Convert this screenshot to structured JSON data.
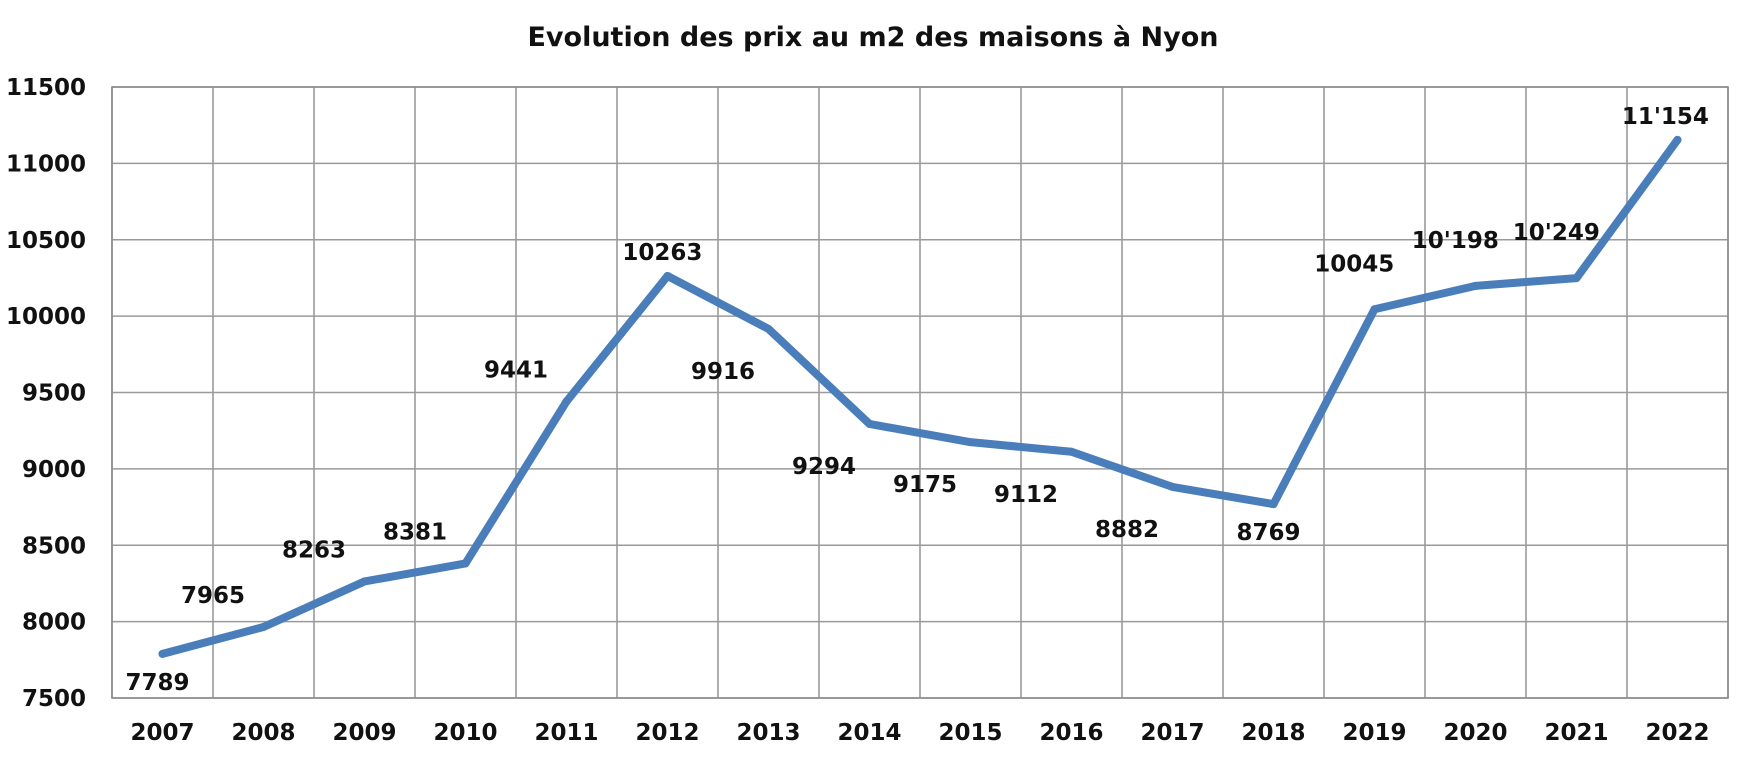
{
  "chart_data": {
    "type": "line",
    "title": "Evolution des prix au m2 des maisons à Nyon",
    "xlabel": "",
    "ylabel": "",
    "categories": [
      "2007",
      "2008",
      "2009",
      "2010",
      "2011",
      "2012",
      "2013",
      "2014",
      "2015",
      "2016",
      "2017",
      "2018",
      "2019",
      "2020",
      "2021",
      "2022"
    ],
    "series": [
      {
        "values": [
          7789,
          7965,
          8263,
          8381,
          9441,
          10263,
          9916,
          9294,
          9175,
          9112,
          8882,
          8769,
          10045,
          10198,
          10249,
          11154
        ],
        "data_labels": [
          "7789",
          "7965",
          "8263",
          "8381",
          "9441",
          "10263",
          "9916",
          "9294",
          "9175",
          "9112",
          "8882",
          "8769",
          "10045",
          "10'198",
          "10'249",
          "11'154"
        ],
        "color": "#4a7ebb"
      }
    ],
    "ylim": [
      7500,
      11500
    ],
    "y_ticks": [
      7500,
      8000,
      8500,
      9000,
      9500,
      10000,
      10500,
      11000,
      11500
    ],
    "y_tick_labels": [
      "7500",
      "8000",
      "8500",
      "9000",
      "9500",
      "10000",
      "10500",
      "11000",
      "11500"
    ],
    "grid": {
      "horizontal": true,
      "vertical": true
    },
    "legend": "none"
  }
}
